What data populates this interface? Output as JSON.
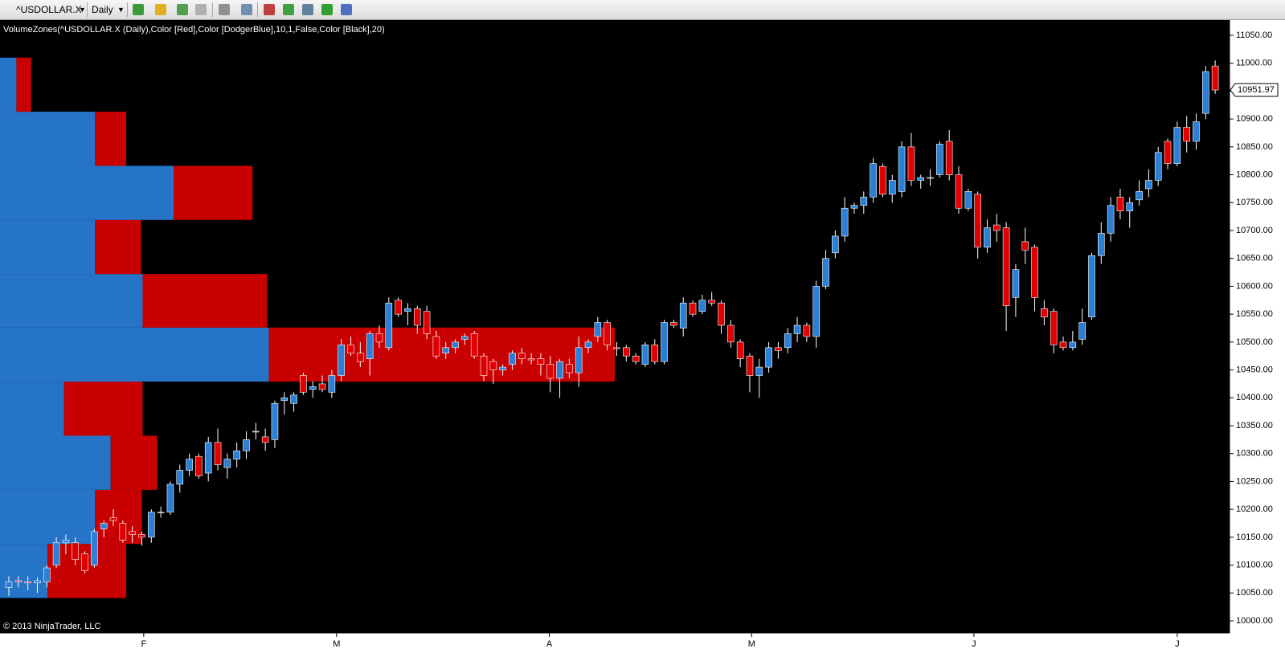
{
  "toolbar": {
    "symbol": "^USDOLLAR.X",
    "interval": "Daily"
  },
  "chart_data": {
    "type": "candlestick",
    "indicator_label": "VolumeZones(^USDOLLAR.X (Daily),Color [Red],Color [DodgerBlue],10,1,False,Color [Black],20)",
    "copyright": "© 2013 NinjaTrader, LLC",
    "up_color": "#2a7fd6",
    "down_color": "#e00000",
    "zone_up_color": "#2574c8",
    "zone_down_color": "#c80000",
    "ylim": [
      10000,
      11050
    ],
    "yticks": [
      {
        "value": 10000,
        "label": "10000.00"
      },
      {
        "value": 10050,
        "label": "10050.00"
      },
      {
        "value": 10100,
        "label": "10100.00"
      },
      {
        "value": 10150,
        "label": "10150.00"
      },
      {
        "value": 10200,
        "label": "10200.00"
      },
      {
        "value": 10250,
        "label": "10250.00"
      },
      {
        "value": 10300,
        "label": "10300.00"
      },
      {
        "value": 10350,
        "label": "10350.00"
      },
      {
        "value": 10400,
        "label": "10400.00"
      },
      {
        "value": 10450,
        "label": "10450.00"
      },
      {
        "value": 10500,
        "label": "10500.00"
      },
      {
        "value": 10550,
        "label": "10550.00"
      },
      {
        "value": 10600,
        "label": "10600.00"
      },
      {
        "value": 10650,
        "label": "10650.00"
      },
      {
        "value": 10700,
        "label": "10700.00"
      },
      {
        "value": 10750,
        "label": "10750.00"
      },
      {
        "value": 10800,
        "label": "10800.00"
      },
      {
        "value": 10850,
        "label": "10850.00"
      },
      {
        "value": 10900,
        "label": "10900.00"
      },
      {
        "value": 10950,
        "label": "10950.00"
      },
      {
        "value": 11000,
        "label": "11000.00"
      },
      {
        "value": 11050,
        "label": "11050.00"
      }
    ],
    "xticks": [
      {
        "value": 14.2,
        "label": "F"
      },
      {
        "value": 34.5,
        "label": "M"
      },
      {
        "value": 56.9,
        "label": "A"
      },
      {
        "value": 78.2,
        "label": "M"
      },
      {
        "value": 101.6,
        "label": "J"
      },
      {
        "value": 123,
        "label": "J"
      }
    ],
    "last_price": 10951.97,
    "zones": [
      {
        "low": 10041,
        "high": 10138,
        "up": 58,
        "down": 96
      },
      {
        "low": 10138,
        "high": 10235,
        "up": 116,
        "down": 57
      },
      {
        "low": 10235,
        "high": 10332,
        "up": 135,
        "down": 57
      },
      {
        "low": 10332,
        "high": 10429,
        "up": 78,
        "down": 96
      },
      {
        "low": 10429,
        "high": 10526,
        "up": 328,
        "down": 422
      },
      {
        "low": 10526,
        "high": 10622,
        "up": 174,
        "down": 152
      },
      {
        "low": 10622,
        "high": 10719,
        "up": 116,
        "down": 56
      },
      {
        "low": 10719,
        "high": 10816,
        "up": 212,
        "down": 96
      },
      {
        "low": 10816,
        "high": 10913,
        "up": 116,
        "down": 38
      },
      {
        "low": 10913,
        "high": 11010,
        "up": 20,
        "down": 18
      }
    ],
    "ohlc": [
      [
        10060,
        10080,
        10045,
        10070
      ],
      [
        10072,
        10080,
        10060,
        10070
      ],
      [
        10070,
        10080,
        10055,
        10068
      ],
      [
        10068,
        10078,
        10050,
        10072
      ],
      [
        10070,
        10100,
        10060,
        10095
      ],
      [
        10100,
        10150,
        10095,
        10140
      ],
      [
        10140,
        10155,
        10120,
        10145
      ],
      [
        10140,
        10150,
        10100,
        10110
      ],
      [
        10120,
        10125,
        10085,
        10090
      ],
      [
        10100,
        10165,
        10095,
        10160
      ],
      [
        10165,
        10180,
        10150,
        10175
      ],
      [
        10185,
        10200,
        10170,
        10180
      ],
      [
        10175,
        10180,
        10140,
        10145
      ],
      [
        10160,
        10170,
        10140,
        10155
      ],
      [
        10155,
        10160,
        10135,
        10150
      ],
      [
        10150,
        10200,
        10140,
        10195
      ],
      [
        10195,
        10205,
        10185,
        10195
      ],
      [
        10195,
        10250,
        10190,
        10245
      ],
      [
        10245,
        10280,
        10230,
        10270
      ],
      [
        10270,
        10300,
        10260,
        10290
      ],
      [
        10295,
        10300,
        10255,
        10260
      ],
      [
        10265,
        10330,
        10250,
        10320
      ],
      [
        10320,
        10345,
        10270,
        10280
      ],
      [
        10275,
        10300,
        10255,
        10290
      ],
      [
        10290,
        10320,
        10275,
        10305
      ],
      [
        10305,
        10340,
        10290,
        10325
      ],
      [
        10340,
        10355,
        10325,
        10340
      ],
      [
        10330,
        10345,
        10305,
        10320
      ],
      [
        10325,
        10395,
        10310,
        10390
      ],
      [
        10395,
        10410,
        10370,
        10400
      ],
      [
        10390,
        10410,
        10375,
        10405
      ],
      [
        10440,
        10445,
        10405,
        10410
      ],
      [
        10415,
        10430,
        10400,
        10420
      ],
      [
        10425,
        10440,
        10410,
        10415
      ],
      [
        10410,
        10450,
        10400,
        10440
      ],
      [
        10440,
        10505,
        10430,
        10495
      ],
      [
        10495,
        10510,
        10475,
        10480
      ],
      [
        10480,
        10500,
        10455,
        10465
      ],
      [
        10470,
        10520,
        10440,
        10515
      ],
      [
        10515,
        10530,
        10490,
        10500
      ],
      [
        10490,
        10580,
        10485,
        10570
      ],
      [
        10575,
        10580,
        10545,
        10550
      ],
      [
        10555,
        10570,
        10530,
        10560
      ],
      [
        10560,
        10565,
        10515,
        10530
      ],
      [
        10555,
        10565,
        10505,
        10515
      ],
      [
        10510,
        10520,
        10470,
        10475
      ],
      [
        10480,
        10500,
        10470,
        10490
      ],
      [
        10490,
        10505,
        10480,
        10500
      ],
      [
        10505,
        10515,
        10495,
        10510
      ],
      [
        10515,
        10520,
        10470,
        10475
      ],
      [
        10475,
        10480,
        10430,
        10440
      ],
      [
        10465,
        10470,
        10425,
        10450
      ],
      [
        10450,
        10460,
        10440,
        10455
      ],
      [
        10460,
        10485,
        10450,
        10480
      ],
      [
        10480,
        10490,
        10460,
        10470
      ],
      [
        10470,
        10480,
        10460,
        10468
      ],
      [
        10470,
        10480,
        10440,
        10460
      ],
      [
        10460,
        10475,
        10410,
        10435
      ],
      [
        10435,
        10470,
        10400,
        10465
      ],
      [
        10460,
        10470,
        10435,
        10445
      ],
      [
        10445,
        10510,
        10420,
        10490
      ],
      [
        10490,
        10505,
        10480,
        10500
      ],
      [
        10510,
        10545,
        10500,
        10535
      ],
      [
        10535,
        10540,
        10485,
        10495
      ],
      [
        10490,
        10500,
        10475,
        10488
      ],
      [
        10490,
        10495,
        10465,
        10475
      ],
      [
        10475,
        10480,
        10460,
        10465
      ],
      [
        10460,
        10500,
        10455,
        10495
      ],
      [
        10495,
        10505,
        10460,
        10465
      ],
      [
        10465,
        10540,
        10460,
        10535
      ],
      [
        10535,
        10540,
        10525,
        10530
      ],
      [
        10525,
        10580,
        10510,
        10570
      ],
      [
        10570,
        10575,
        10545,
        10550
      ],
      [
        10555,
        10585,
        10550,
        10575
      ],
      [
        10575,
        10590,
        10565,
        10570
      ],
      [
        10570,
        10575,
        10515,
        10530
      ],
      [
        10530,
        10540,
        10490,
        10500
      ],
      [
        10500,
        10505,
        10455,
        10470
      ],
      [
        10475,
        10480,
        10410,
        10440
      ],
      [
        10440,
        10470,
        10400,
        10455
      ],
      [
        10455,
        10500,
        10445,
        10490
      ],
      [
        10490,
        10500,
        10470,
        10485
      ],
      [
        10490,
        10525,
        10480,
        10515
      ],
      [
        10515,
        10545,
        10500,
        10530
      ],
      [
        10530,
        10535,
        10500,
        10510
      ],
      [
        10510,
        10610,
        10490,
        10600
      ],
      [
        10600,
        10665,
        10595,
        10650
      ],
      [
        10660,
        10700,
        10650,
        10690
      ],
      [
        10690,
        10760,
        10680,
        10740
      ],
      [
        10740,
        10750,
        10730,
        10745
      ],
      [
        10745,
        10770,
        10730,
        10760
      ],
      [
        10760,
        10830,
        10750,
        10820
      ],
      [
        10815,
        10820,
        10760,
        10765
      ],
      [
        10765,
        10800,
        10750,
        10790
      ],
      [
        10770,
        10860,
        10760,
        10850
      ],
      [
        10850,
        10875,
        10780,
        10790
      ],
      [
        10790,
        10800,
        10775,
        10795
      ],
      [
        10795,
        10810,
        10780,
        10795
      ],
      [
        10800,
        10860,
        10795,
        10855
      ],
      [
        10860,
        10880,
        10790,
        10800
      ],
      [
        10800,
        10815,
        10730,
        10740
      ],
      [
        10740,
        10775,
        10735,
        10770
      ],
      [
        10765,
        10770,
        10650,
        10670
      ],
      [
        10670,
        10720,
        10660,
        10705
      ],
      [
        10710,
        10730,
        10680,
        10700
      ],
      [
        10705,
        10715,
        10520,
        10565
      ],
      [
        10580,
        10640,
        10545,
        10630
      ],
      [
        10680,
        10705,
        10640,
        10665
      ],
      [
        10670,
        10675,
        10555,
        10580
      ],
      [
        10560,
        10575,
        10530,
        10545
      ],
      [
        10555,
        10560,
        10480,
        10495
      ],
      [
        10500,
        10510,
        10485,
        10490
      ],
      [
        10490,
        10520,
        10485,
        10500
      ],
      [
        10505,
        10560,
        10495,
        10535
      ],
      [
        10545,
        10660,
        10540,
        10655
      ],
      [
        10655,
        10715,
        10640,
        10695
      ],
      [
        10695,
        10760,
        10680,
        10745
      ],
      [
        10760,
        10775,
        10720,
        10735
      ],
      [
        10735,
        10760,
        10705,
        10750
      ],
      [
        10755,
        10790,
        10745,
        10770
      ],
      [
        10775,
        10810,
        10760,
        10790
      ],
      [
        10790,
        10850,
        10780,
        10840
      ],
      [
        10860,
        10865,
        10810,
        10820
      ],
      [
        10820,
        10895,
        10815,
        10885
      ],
      [
        10885,
        10905,
        10840,
        10860
      ],
      [
        10860,
        10910,
        10845,
        10895
      ],
      [
        10910,
        10995,
        10900,
        10985
      ],
      [
        10995,
        11005,
        10945,
        10951.97
      ]
    ]
  }
}
